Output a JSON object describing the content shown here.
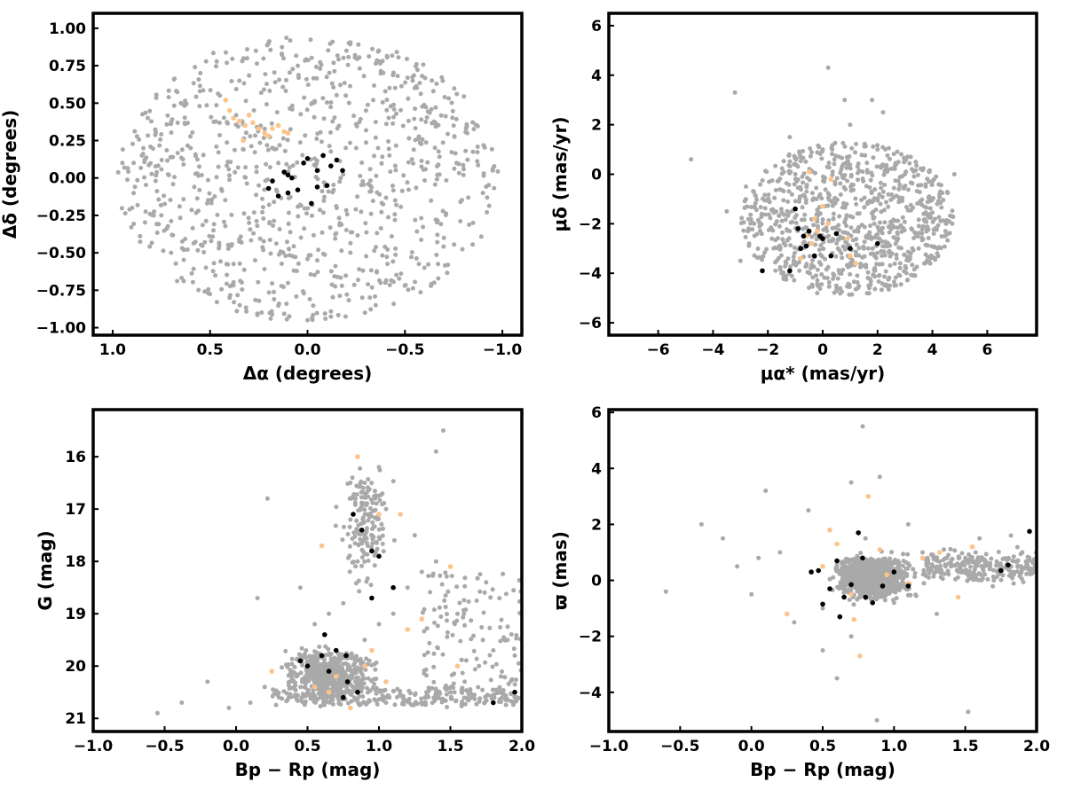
{
  "chart_data": [
    {
      "type": "scatter",
      "id": "sky",
      "xlabel": "Δα (degrees)",
      "ylabel": "Δδ (degrees)",
      "xlim": [
        1.1,
        -1.1
      ],
      "ylim": [
        -1.05,
        1.1
      ],
      "xticks": [
        1.0,
        0.5,
        0.0,
        -0.5,
        -1.0
      ],
      "xtick_labels": [
        "1.0",
        "0.5",
        "0.0",
        "−0.5",
        "−1.0"
      ],
      "yticks": [
        -1.0,
        -0.75,
        -0.5,
        -0.25,
        0.0,
        0.25,
        0.5,
        0.75,
        1.0
      ],
      "ytick_labels": [
        "−1.00",
        "−0.75",
        "−0.50",
        "−0.25",
        "0.00",
        "0.25",
        "0.50",
        "0.75",
        "1.00"
      ],
      "grid": false,
      "series": [
        {
          "color": "#a9a9a9",
          "x": [
            0.95,
            0.9,
            0.82,
            0.7,
            0.55,
            0.4,
            0.2,
            0.0,
            -0.2,
            -0.4,
            -0.55,
            -0.7,
            -0.82,
            -0.9,
            -0.95,
            0.6,
            0.3,
            -0.3,
            -0.6,
            0.15,
            -0.15,
            0.45,
            -0.45,
            0.75,
            -0.75,
            0.05,
            -0.05,
            0.25,
            -0.25,
            0.65,
            -0.65,
            0.35,
            -0.35,
            0.85,
            -0.85
          ],
          "y": [
            0.1,
            -0.2,
            0.4,
            -0.5,
            0.7,
            -0.8,
            0.9,
            -0.95,
            0.85,
            -0.7,
            0.6,
            -0.4,
            0.3,
            -0.1,
            0.05,
            0.2,
            -0.3,
            0.45,
            -0.6,
            0.1,
            -0.2,
            0.55,
            -0.15,
            -0.25,
            0.35,
            0.75,
            -0.55,
            -0.05,
            0.2,
            0.5,
            -0.7,
            0.65,
            -0.85,
            0.15,
            -0.3
          ]
        },
        {
          "color": "#fdc48a",
          "x": [
            0.42,
            0.38,
            0.35,
            0.32,
            0.3,
            0.28,
            0.25,
            0.22,
            0.2,
            0.18,
            0.15,
            0.12,
            0.1,
            0.4,
            0.33
          ],
          "y": [
            0.52,
            0.4,
            0.38,
            0.35,
            0.42,
            0.37,
            0.33,
            0.3,
            0.28,
            0.33,
            0.35,
            0.31,
            0.3,
            0.45,
            0.25
          ]
        },
        {
          "color": "#000000",
          "x": [
            0.0,
            -0.05,
            0.1,
            -0.1,
            0.05,
            -0.08,
            0.2,
            -0.15,
            0.15,
            -0.02,
            0.12,
            -0.12,
            0.08,
            -0.05,
            0.02,
            0.18,
            -0.18,
            0.1
          ],
          "y": [
            0.13,
            0.05,
            -0.1,
            -0.05,
            -0.08,
            0.15,
            -0.07,
            0.12,
            -0.12,
            -0.17,
            0.04,
            0.08,
            0.0,
            -0.06,
            0.1,
            -0.02,
            0.05,
            0.02
          ]
        }
      ]
    },
    {
      "type": "scatter",
      "id": "pm",
      "xlabel": "μα* (mas/yr)",
      "ylabel": "μδ (mas/yr)",
      "xlim": [
        -7.8,
        7.8
      ],
      "ylim": [
        -6.5,
        6.5
      ],
      "xticks": [
        -6,
        -4,
        -2,
        0,
        2,
        4,
        6
      ],
      "xtick_labels": [
        "−6",
        "−4",
        "−2",
        "0",
        "2",
        "4",
        "6"
      ],
      "yticks": [
        -6,
        -4,
        -2,
        0,
        2,
        4,
        6
      ],
      "ytick_labels": [
        "−6",
        "−4",
        "−2",
        "0",
        "2",
        "4",
        "6"
      ],
      "grid": false,
      "series": [
        {
          "color": "#a9a9a9",
          "x": [
            -3,
            -2.5,
            -2,
            -1,
            0,
            1,
            2,
            3,
            4,
            4.5,
            -1.5,
            0.5,
            1.5,
            2.5,
            3.5,
            -0.5,
            -3.5,
            -2.8,
            -1.2,
            0.8,
            2.2,
            3.8,
            -4.8,
            -3.2,
            1.8,
            2.8,
            4.8,
            0.2,
            -0.2
          ],
          "y": [
            -3.5,
            -2,
            -1,
            0,
            1,
            2,
            1,
            0,
            -1,
            -2,
            -4,
            -4.5,
            -3,
            -2,
            -3,
            -2.8,
            -1.5,
            -0.5,
            1.5,
            3,
            2.5,
            -3.5,
            0.6,
            3.3,
            3,
            -1,
            0,
            4.3,
            -4.8
          ]
        },
        {
          "color": "#fdc48a",
          "x": [
            -0.5,
            -0.3,
            -0.6,
            0.0,
            0.3,
            1.0,
            1.2,
            -0.4,
            0.2,
            0.9,
            -0.2,
            -0.8
          ],
          "y": [
            0.1,
            -1.8,
            -2.5,
            -1.3,
            -0.2,
            -3.3,
            -3.6,
            -2.8,
            -2.0,
            -2.6,
            -2.3,
            -3.4
          ]
        },
        {
          "color": "#000000",
          "x": [
            -1.0,
            -0.5,
            -0.7,
            0.0,
            -0.8,
            -1.2,
            0.5,
            1.0,
            2.0,
            -0.3,
            -0.6,
            0.3,
            -2.2,
            -0.9,
            -0.1
          ],
          "y": [
            -1.4,
            -2.3,
            -2.5,
            -2.6,
            -3.0,
            -3.9,
            -2.4,
            -3.0,
            -2.8,
            -3.3,
            -2.9,
            -3.3,
            -3.9,
            -2.2,
            -2.5
          ]
        }
      ]
    },
    {
      "type": "scatter",
      "id": "cmd",
      "xlabel": "Bp − Rp (mag)",
      "ylabel": "G (mag)",
      "xlim": [
        -1.0,
        2.0
      ],
      "ylim": [
        21.25,
        15.1
      ],
      "xticks": [
        -1.0,
        -0.5,
        0.0,
        0.5,
        1.0,
        1.5,
        2.0
      ],
      "xtick_labels": [
        "−1.0",
        "−0.5",
        "0.0",
        "0.5",
        "1.0",
        "1.5",
        "2.0"
      ],
      "yticks": [
        16,
        17,
        18,
        19,
        20,
        21
      ],
      "ytick_labels": [
        "16",
        "17",
        "18",
        "19",
        "20",
        "21"
      ],
      "grid": false,
      "series": [
        {
          "color": "#a9a9a9",
          "x": [
            -0.55,
            -0.38,
            -0.2,
            -0.05,
            0.1,
            0.2,
            0.3,
            0.4,
            0.5,
            0.6,
            0.7,
            0.8,
            0.9,
            1.0,
            1.1,
            1.2,
            1.3,
            1.4,
            1.5,
            1.6,
            1.7,
            1.8,
            1.9,
            0.85,
            0.95,
            1.05,
            0.9,
            0.8,
            1.0,
            1.4,
            1.45,
            0.75,
            0.65,
            0.55,
            0.45,
            0.22,
            0.15,
            1.25,
            1.55,
            1.75,
            1.95
          ],
          "y": [
            20.9,
            20.7,
            20.3,
            20.8,
            20.7,
            20.4,
            20.6,
            20.3,
            20.5,
            20.2,
            20.0,
            19.8,
            19.5,
            19.2,
            19.0,
            18.5,
            18.2,
            18.0,
            20.5,
            20.3,
            20.0,
            19.7,
            19.5,
            18.0,
            17.5,
            17.0,
            16.5,
            17.2,
            16.2,
            15.9,
            15.5,
            18.8,
            19.0,
            19.2,
            18.5,
            16.8,
            18.7,
            17.5,
            19.0,
            18.4,
            19.8
          ]
        },
        {
          "color": "#fdc48a",
          "x": [
            0.55,
            0.6,
            0.8,
            0.85,
            0.9,
            1.0,
            1.05,
            1.15,
            1.3,
            1.5,
            1.55,
            0.95,
            0.7,
            0.25,
            1.2,
            0.65
          ],
          "y": [
            20.4,
            17.7,
            20.8,
            16.0,
            20.0,
            17.1,
            20.3,
            17.1,
            19.1,
            18.1,
            20.0,
            19.7,
            20.2,
            20.1,
            19.3,
            20.5
          ]
        },
        {
          "color": "#000000",
          "x": [
            0.75,
            0.78,
            0.85,
            0.95,
            1.0,
            1.1,
            0.82,
            0.88,
            0.95,
            0.6,
            0.65,
            0.45,
            0.7,
            1.8,
            1.95,
            0.5,
            0.77,
            0.62
          ],
          "y": [
            20.6,
            20.3,
            20.5,
            18.7,
            17.9,
            18.5,
            17.1,
            17.4,
            17.8,
            19.8,
            20.1,
            19.9,
            19.7,
            20.7,
            20.5,
            20.0,
            19.8,
            19.4
          ]
        }
      ]
    },
    {
      "type": "scatter",
      "id": "parallax",
      "xlabel": "Bp − Rp (mag)",
      "ylabel": "ϖ (mas)",
      "xlim": [
        -1.0,
        2.0
      ],
      "ylim": [
        -5.4,
        6.1
      ],
      "xticks": [
        -1.0,
        -0.5,
        0.0,
        0.5,
        1.0,
        1.5,
        2.0
      ],
      "xtick_labels": [
        "−1.0",
        "−0.5",
        "0.0",
        "0.5",
        "1.0",
        "1.5",
        "2.0"
      ],
      "yticks": [
        -4,
        -2,
        0,
        2,
        4,
        6
      ],
      "ytick_labels": [
        "−4",
        "−2",
        "0",
        "2",
        "4",
        "6"
      ],
      "grid": false,
      "series": [
        {
          "color": "#a9a9a9",
          "x": [
            -0.6,
            -0.35,
            -0.2,
            -0.1,
            0.0,
            0.1,
            0.2,
            0.3,
            0.4,
            0.5,
            0.6,
            0.7,
            0.8,
            0.9,
            1.0,
            1.1,
            1.2,
            1.3,
            1.4,
            1.5,
            1.6,
            1.7,
            1.8,
            1.9,
            0.78,
            0.88,
            1.52,
            1.82,
            0.7,
            0.5,
            0.6,
            0.05,
            0.9
          ],
          "y": [
            -0.4,
            2.0,
            1.5,
            0.5,
            -0.5,
            3.2,
            1.0,
            -1.5,
            2.5,
            -1.0,
            0.5,
            -2.0,
            1.5,
            0.0,
            -0.8,
            2.0,
            1.0,
            -1.2,
            0.5,
            0.8,
            1.5,
            0.0,
            0.4,
            1.0,
            5.5,
            -5.0,
            -4.7,
            1.6,
            3.5,
            -2.5,
            -3.5,
            0.8,
            3.7
          ]
        },
        {
          "color": "#fdc48a",
          "x": [
            0.25,
            0.5,
            0.6,
            0.7,
            0.72,
            0.76,
            0.82,
            0.9,
            0.95,
            1.0,
            1.1,
            1.2,
            1.32,
            1.45,
            1.55,
            0.55
          ],
          "y": [
            -1.2,
            0.5,
            1.3,
            -0.5,
            -1.4,
            -2.7,
            3.0,
            1.1,
            0.2,
            0.3,
            -0.1,
            0.8,
            1.0,
            -0.6,
            1.2,
            1.8
          ]
        },
        {
          "color": "#000000",
          "x": [
            0.42,
            0.47,
            0.5,
            0.6,
            0.65,
            0.7,
            0.75,
            0.8,
            0.85,
            0.92,
            1.0,
            1.1,
            1.75,
            1.8,
            1.95,
            0.62,
            0.78,
            0.55
          ],
          "y": [
            0.3,
            0.35,
            -0.85,
            0.7,
            -0.6,
            -0.15,
            1.7,
            -0.6,
            -0.8,
            -0.2,
            0.3,
            -0.2,
            0.35,
            0.55,
            1.75,
            -1.3,
            0.8,
            -0.3
          ]
        }
      ]
    }
  ]
}
